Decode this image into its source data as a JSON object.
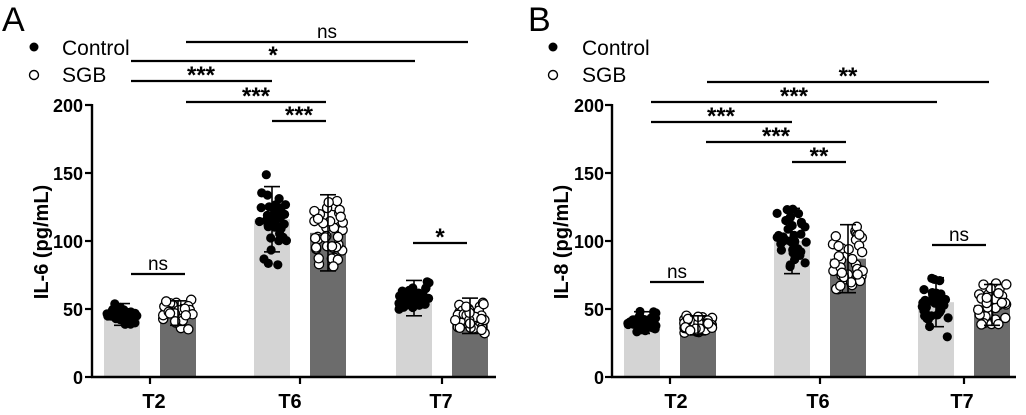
{
  "chart_data": [
    {
      "type": "bar",
      "panel": "A",
      "ylabel": "IL-6 (pg/mL)",
      "ylim": [
        0,
        200
      ],
      "yticks": [
        "0",
        "50",
        "100",
        "150",
        "200"
      ],
      "categories": [
        "T2",
        "T6",
        "T7"
      ],
      "legend": [
        "Control",
        "SGB"
      ],
      "series": [
        {
          "name": "Control",
          "values": [
            46,
            116,
            58
          ],
          "sd": [
            8,
            24,
            13
          ],
          "color": "#d4d4d4"
        },
        {
          "name": "SGB",
          "values": [
            47,
            106,
            45
          ],
          "sd": [
            9,
            28,
            13
          ],
          "color": "#6c6c6c"
        }
      ],
      "significance": [
        {
          "from": "T2-SGB",
          "to": "T7-SGB",
          "label": "ns"
        },
        {
          "from": "T2-Control",
          "to": "T7-Control",
          "label": "*"
        },
        {
          "from": "T2-Control",
          "to": "T6-Control",
          "label": "***"
        },
        {
          "from": "T2-SGB",
          "to": "T6-SGB",
          "label": "***"
        },
        {
          "from": "T6-Control",
          "to": "T6-SGB",
          "label": "***"
        },
        {
          "from": "T2-Control",
          "to": "T2-SGB",
          "label": "ns"
        },
        {
          "from": "T7-Control",
          "to": "T7-SGB",
          "label": "*"
        }
      ]
    },
    {
      "type": "bar",
      "panel": "B",
      "ylabel": "IL-8 (pg/mL)",
      "ylim": [
        0,
        200
      ],
      "yticks": [
        "0",
        "50",
        "100",
        "150",
        "200"
      ],
      "categories": [
        "T2",
        "T6",
        "T7"
      ],
      "legend": [
        "Control",
        "SGB"
      ],
      "series": [
        {
          "name": "Control",
          "values": [
            40,
            100,
            55
          ],
          "sd": [
            8,
            24,
            18
          ],
          "color": "#d4d4d4"
        },
        {
          "name": "SGB",
          "values": [
            38,
            87,
            53
          ],
          "sd": [
            7,
            25,
            15
          ],
          "color": "#6c6c6c"
        }
      ],
      "significance": [
        {
          "from": "T2-SGB",
          "to": "T7-SGB",
          "label": "**"
        },
        {
          "from": "T2-Control",
          "to": "T7-Control",
          "label": "***"
        },
        {
          "from": "T2-Control",
          "to": "T6-Control",
          "label": "***"
        },
        {
          "from": "T2-SGB",
          "to": "T6-SGB",
          "label": "***"
        },
        {
          "from": "T6-Control",
          "to": "T6-SGB",
          "label": "**"
        },
        {
          "from": "T2-Control",
          "to": "T2-SGB",
          "label": "ns"
        },
        {
          "from": "T7-Control",
          "to": "T7-SGB",
          "label": "ns"
        }
      ]
    }
  ]
}
